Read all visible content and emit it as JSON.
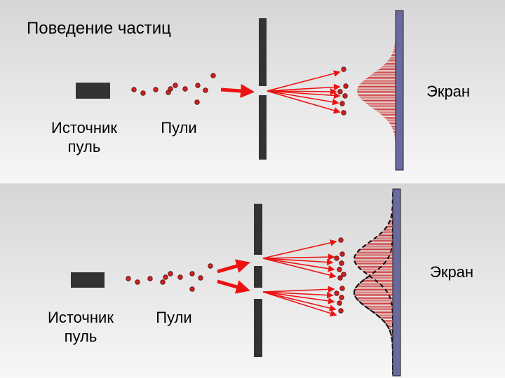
{
  "title": "Поведение частиц",
  "colors": {
    "bullet": "#cc2020",
    "arrow": "#ee1111",
    "barrier": "#333333",
    "screen": "#6a6a9e",
    "pattern": "#cc2222"
  },
  "top_panel": {
    "source_label_line1": "Источник",
    "source_label_line2": "пуль",
    "bullets_label": "Пули",
    "screen_label": "Экран",
    "slits": 1
  },
  "bottom_panel": {
    "source_label_line1": "Источник",
    "source_label_line2": "пуль",
    "bullets_label": "Пули",
    "screen_label": "Экран",
    "slits": 2
  }
}
